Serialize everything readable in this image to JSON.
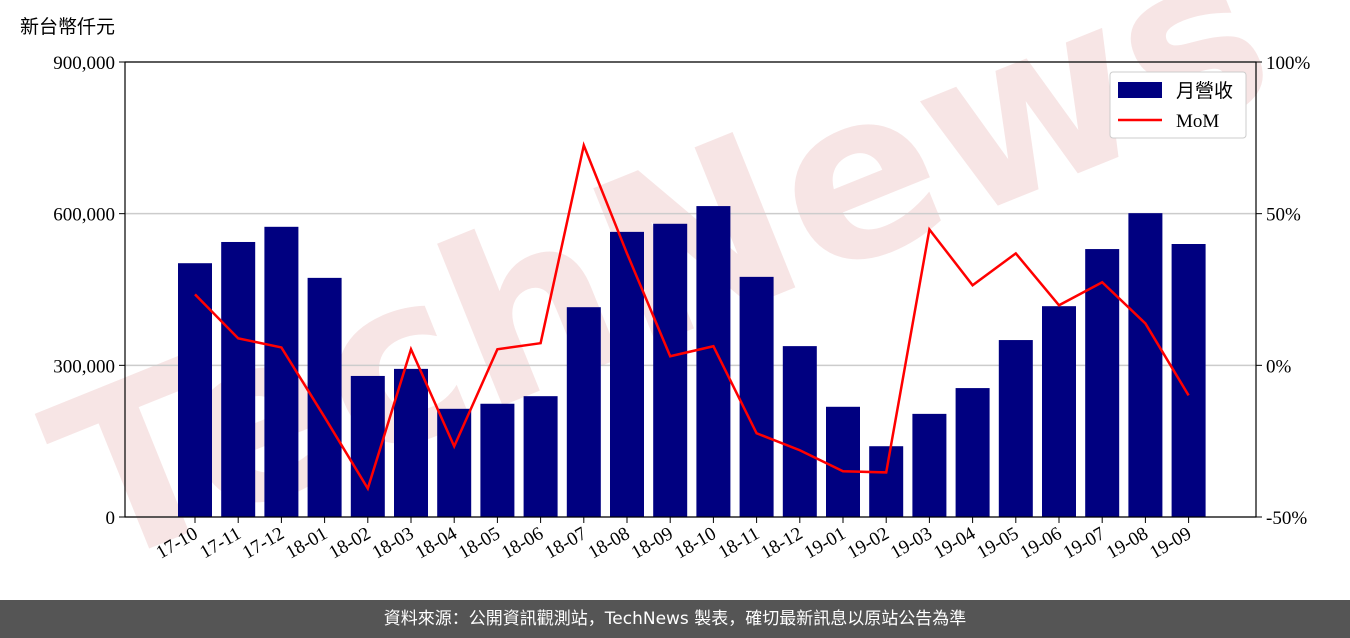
{
  "chart_data": {
    "type": "bar",
    "y_axis_label": "新台幣仟元",
    "watermark": "TechNews",
    "categories": [
      "17-10",
      "17-11",
      "17-12",
      "18-01",
      "18-02",
      "18-03",
      "18-04",
      "18-05",
      "18-06",
      "18-07",
      "18-08",
      "18-09",
      "18-10",
      "18-11",
      "18-12",
      "19-01",
      "19-02",
      "19-03",
      "19-04",
      "19-05",
      "19-06",
      "19-07",
      "19-08",
      "19-09"
    ],
    "series": [
      {
        "name": "月營收",
        "type": "bar",
        "color": "#000080",
        "axis": "y",
        "values": [
          502000,
          544000,
          574000,
          473000,
          279000,
          293000,
          214000,
          224000,
          239000,
          415000,
          564000,
          580000,
          615000,
          475000,
          338000,
          218000,
          140000,
          204000,
          255000,
          350000,
          417000,
          530000,
          601000,
          540000
        ]
      },
      {
        "name": "MoM",
        "type": "line",
        "color": "#ff0000",
        "axis": "y2",
        "values": [
          23.4,
          8.9,
          5.9,
          -17.1,
          -40.6,
          5.3,
          -26.7,
          5.3,
          7.3,
          72.5,
          36.9,
          3.0,
          6.3,
          -22.4,
          -28.0,
          -34.9,
          -35.3,
          44.8,
          26.4,
          36.9,
          19.8,
          27.4,
          13.8,
          -9.9
        ]
      }
    ],
    "ylim": [
      0,
      900000
    ],
    "yticks": [
      0,
      {
        "value": 300000,
        "label": "300,000"
      },
      {
        "value": 600000,
        "label": "600,000"
      },
      {
        "value": 900000,
        "label": "900,000"
      }
    ],
    "y2lim": [
      -50,
      100
    ],
    "y2ticks": [
      {
        "value": -50,
        "label": "-50%"
      },
      {
        "value": 0,
        "label": "0%"
      },
      {
        "value": 50,
        "label": "50%"
      },
      {
        "value": 100,
        "label": "100%"
      }
    ],
    "grid": true,
    "legend": "upper right",
    "footer": "資料來源：公開資訊觀測站，TechNews 製表，確切最新訊息以原站公告為準"
  }
}
